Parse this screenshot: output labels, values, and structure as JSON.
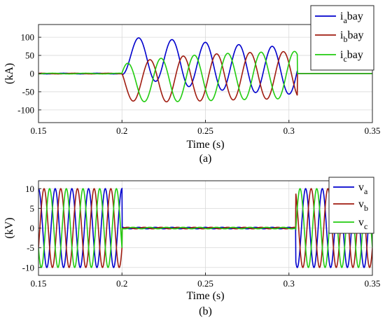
{
  "colors": {
    "phase_a": "#0000cd",
    "phase_b": "#a01c10",
    "phase_c": "#22cc10",
    "grid": "#d9d9d9",
    "axes": "#262626"
  },
  "chart_data": [
    {
      "type": "line",
      "panel_label": "(a)",
      "xlabel": "Time (s)",
      "ylabel": "(kA)",
      "xlim": [
        0.15,
        0.35
      ],
      "ylim": [
        -135,
        135
      ],
      "xticks": [
        "0.15",
        "0.2",
        "0.25",
        "0.3",
        "0.35"
      ],
      "yticks": [
        "100",
        "50",
        "0",
        "-50",
        "-100"
      ],
      "grid": true,
      "legend_position": "top-right",
      "legend": [
        {
          "label_main": "i",
          "label_sub": "a",
          "label_tail": "bay",
          "series": "a"
        },
        {
          "label_main": "i",
          "label_sub": "b",
          "label_tail": "bay",
          "series": "b"
        },
        {
          "label_main": "i",
          "label_sub": "c",
          "label_tail": "bay",
          "series": "c"
        }
      ],
      "waveform": {
        "frequency_hz": 50,
        "pre_fault": {
          "t_start": 0.15,
          "t_end": 0.2,
          "amplitude": 1
        },
        "fault": {
          "t_start": 0.2,
          "t_end": 0.305,
          "ac_amplitude": 65,
          "dc_offset": [
            62,
            -31,
            -31
          ],
          "dc_decay_tau": 0.05,
          "phase_shift_deg": 0
        },
        "post_fault": {
          "t_start": 0.305,
          "t_end": 0.35,
          "amplitude": 0
        }
      },
      "series": [
        {
          "name": "a",
          "peak_values": [
            {
              "t": 0.21,
              "y": 127
            },
            {
              "t": 0.22,
              "y": -34
            },
            {
              "t": 0.23,
              "y": 103
            },
            {
              "t": 0.25,
              "y": 90
            },
            {
              "t": 0.27,
              "y": 82
            },
            {
              "t": 0.29,
              "y": 77
            },
            {
              "t": 0.3,
              "y": -68
            }
          ]
        },
        {
          "name": "b",
          "peak_values": [
            {
              "t": 0.217,
              "y": 54
            },
            {
              "t": 0.226,
              "y": -92
            },
            {
              "t": 0.246,
              "y": -85
            },
            {
              "t": 0.266,
              "y": -80
            },
            {
              "t": 0.3,
              "y": 64
            }
          ]
        },
        {
          "name": "c",
          "peak_values": [
            {
              "t": 0.204,
              "y": 38
            },
            {
              "t": 0.213,
              "y": -95
            },
            {
              "t": 0.233,
              "y": -88
            },
            {
              "t": 0.253,
              "y": -82
            },
            {
              "t": 0.3,
              "y": 72
            }
          ]
        }
      ]
    },
    {
      "type": "line",
      "panel_label": "(b)",
      "xlabel": "Time (s)",
      "ylabel": "(kV)",
      "xlim": [
        0.15,
        0.35
      ],
      "ylim": [
        -12,
        12
      ],
      "xticks": [
        "0.15",
        "0.2",
        "0.25",
        "0.3",
        "0.35"
      ],
      "yticks": [
        "10",
        "5",
        "0",
        "-5",
        "-10"
      ],
      "grid": true,
      "legend_position": "top-right",
      "legend": [
        {
          "label_main": "v",
          "label_sub": "a",
          "label_tail": "",
          "series": "a"
        },
        {
          "label_main": "v",
          "label_sub": "b",
          "label_tail": "",
          "series": "b"
        },
        {
          "label_main": "v",
          "label_sub": "c",
          "label_tail": "",
          "series": "c"
        }
      ],
      "waveform": {
        "frequency_hz": 100,
        "segments": [
          {
            "t_start": 0.15,
            "t_end": 0.2,
            "amplitude": 10
          },
          {
            "t_start": 0.2,
            "t_end": 0.304,
            "amplitude": 0.2
          },
          {
            "t_start": 0.304,
            "t_end": 0.35,
            "amplitude": 10
          }
        ]
      },
      "series": [
        {
          "name": "a",
          "amplitude": 10
        },
        {
          "name": "b",
          "amplitude": 10
        },
        {
          "name": "c",
          "amplitude": 10
        }
      ]
    }
  ]
}
